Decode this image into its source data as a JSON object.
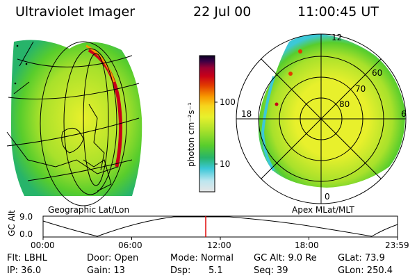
{
  "header": {
    "title": "Ultraviolet Imager",
    "date": "22 Jul 00",
    "time": "11:00:45 UT"
  },
  "colorbar": {
    "label": "photon cm⁻²s⁻¹",
    "ticks": [
      "100",
      "10"
    ],
    "scale": "log",
    "colors": [
      "#e6e6e6",
      "#bde6ef",
      "#3cc8d8",
      "#27b46a",
      "#58cd2c",
      "#a8e12b",
      "#e8f02c",
      "#f7d51c",
      "#f79800",
      "#e23c00",
      "#c80018",
      "#9a0033",
      "#3a0045",
      "#0a0020"
    ]
  },
  "left_map": {
    "caption": "Geographic Lat/Lon"
  },
  "right_map": {
    "caption": "Apex MLat/MLT",
    "mlt_labels": [
      "12",
      "18",
      "6",
      "0"
    ],
    "mlat_labels": [
      "60",
      "70",
      "80"
    ]
  },
  "timeline": {
    "axis_label": "GC Alt",
    "y_max_label": "9.0",
    "y_min_label": "0.0",
    "ticks": [
      "00:00",
      "06:00",
      "12:00",
      "18:00",
      "23:59"
    ],
    "current_time_fraction": 0.4589,
    "marker_color": "#e00000"
  },
  "info": {
    "r1": {
      "filter": "Flt: LBHL",
      "door": "Door: Open",
      "mode": "Mode: Normal",
      "gc_alt": "GC Alt: 9.0 Re",
      "glat": "GLat: 73.9"
    },
    "r2": {
      "ip": "IP: 36.0",
      "gain": "Gain: 13",
      "dsp": "Dsp:",
      "dsp_val": "5.1",
      "seq": "Seq: 39",
      "glon": "GLon: 250.4"
    }
  }
}
